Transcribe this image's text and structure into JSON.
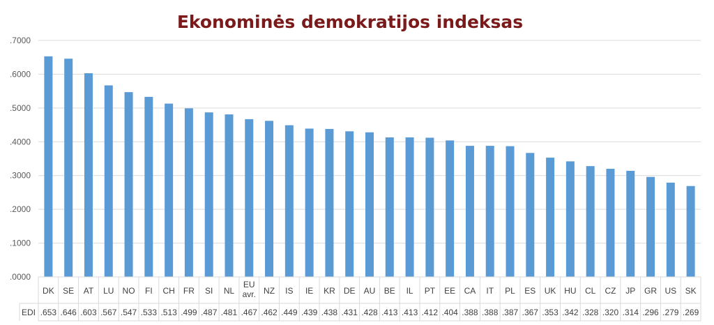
{
  "chart_data": {
    "type": "bar",
    "title": "Ekonominės demokratijos indeksas",
    "xlabel": "",
    "ylabel": "",
    "ylim": [
      0,
      0.7
    ],
    "yticks": [
      ".0000",
      ".1000",
      ".2000",
      ".3000",
      ".4000",
      ".5000",
      ".6000",
      ".7000"
    ],
    "grid": true,
    "bar_color": "#5b9bd5",
    "categories": [
      "DK",
      "SE",
      "AT",
      "LU",
      "NO",
      "FI",
      "CH",
      "FR",
      "SI",
      "NL",
      "EU avr.",
      "NZ",
      "IS",
      "IE",
      "KR",
      "DE",
      "AU",
      "BE",
      "IL",
      "PT",
      "EE",
      "CA",
      "IT",
      "PL",
      "ES",
      "UK",
      "HU",
      "CL",
      "CZ",
      "JP",
      "GR",
      "US",
      "SK"
    ],
    "category_lines": [
      [
        "DK"
      ],
      [
        "SE"
      ],
      [
        "AT"
      ],
      [
        "LU"
      ],
      [
        "NO"
      ],
      [
        "FI"
      ],
      [
        "CH"
      ],
      [
        "FR"
      ],
      [
        "SI"
      ],
      [
        "NL"
      ],
      [
        "EU",
        "avr."
      ],
      [
        "NZ"
      ],
      [
        "IS"
      ],
      [
        "IE"
      ],
      [
        "KR"
      ],
      [
        "DE"
      ],
      [
        "AU"
      ],
      [
        "BE"
      ],
      [
        "IL"
      ],
      [
        "PT"
      ],
      [
        "EE"
      ],
      [
        "CA"
      ],
      [
        "IT"
      ],
      [
        "PL"
      ],
      [
        "ES"
      ],
      [
        "UK"
      ],
      [
        "HU"
      ],
      [
        "CL"
      ],
      [
        "CZ"
      ],
      [
        "JP"
      ],
      [
        "GR"
      ],
      [
        "US"
      ],
      [
        "SK"
      ]
    ],
    "series": [
      {
        "name": "EDI",
        "values": [
          0.653,
          0.646,
          0.603,
          0.567,
          0.547,
          0.533,
          0.513,
          0.499,
          0.487,
          0.481,
          0.467,
          0.462,
          0.449,
          0.439,
          0.438,
          0.431,
          0.428,
          0.413,
          0.413,
          0.412,
          0.404,
          0.388,
          0.388,
          0.387,
          0.367,
          0.353,
          0.342,
          0.328,
          0.32,
          0.314,
          0.296,
          0.279,
          0.269
        ],
        "labels": [
          ".653",
          ".646",
          ".603",
          ".567",
          ".547",
          ".533",
          ".513",
          ".499",
          ".487",
          ".481",
          ".467",
          ".462",
          ".449",
          ".439",
          ".438",
          ".431",
          ".428",
          ".413",
          ".413",
          ".412",
          ".404",
          ".388",
          ".388",
          ".387",
          ".367",
          ".353",
          ".342",
          ".328",
          ".320",
          ".314",
          ".296",
          ".279",
          ".269"
        ]
      }
    ]
  }
}
